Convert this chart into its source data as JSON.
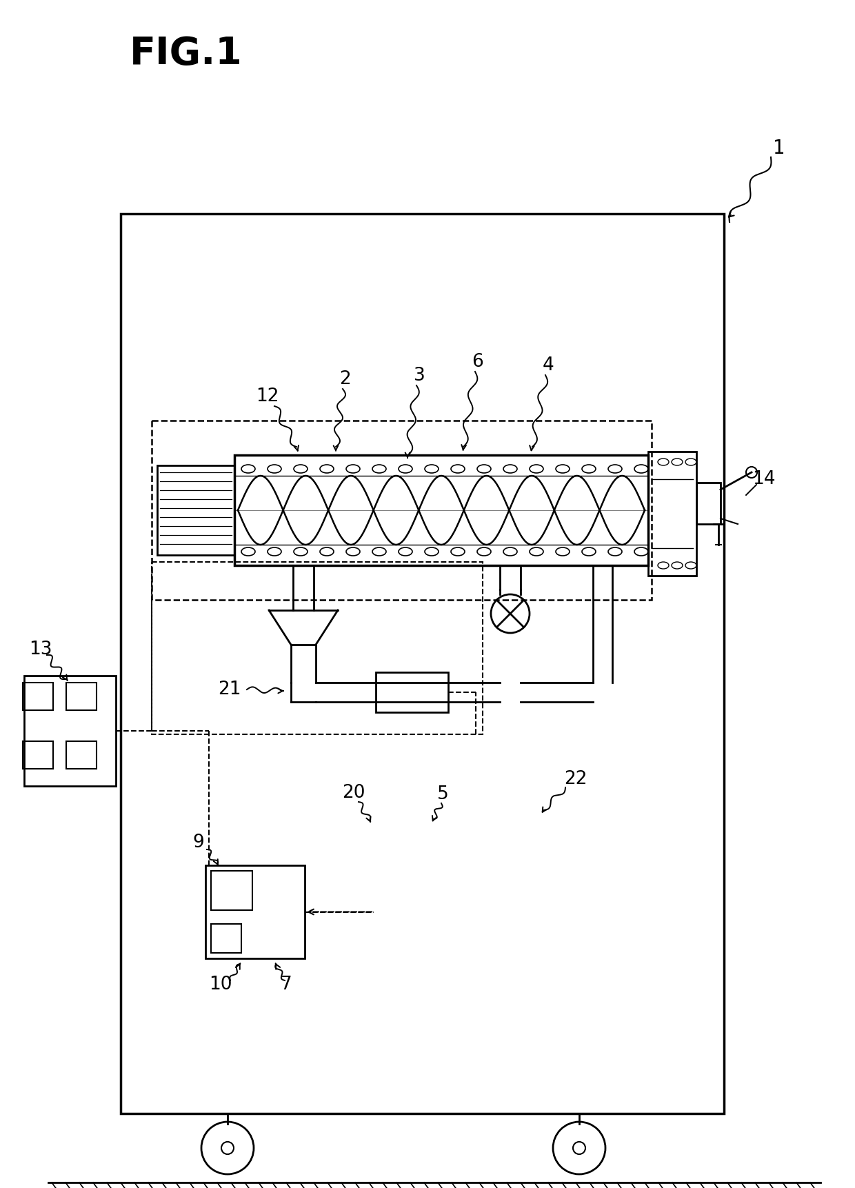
{
  "title": "FIG.1",
  "bg_color": "#ffffff",
  "line_color": "#000000",
  "fig_width": 12.4,
  "fig_height": 17.23,
  "dpi": 100
}
